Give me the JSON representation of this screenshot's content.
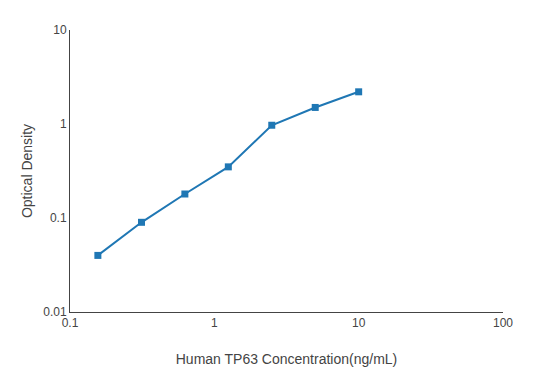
{
  "chart_data": {
    "type": "line",
    "x": [
      0.156,
      0.313,
      0.625,
      1.25,
      2.5,
      5.0,
      10.0
    ],
    "values": [
      0.04,
      0.09,
      0.18,
      0.35,
      0.97,
      1.5,
      2.2
    ],
    "xlabel": "Human TP63 Concentration(ng/mL)",
    "ylabel": "Optical Density",
    "xlim": [
      0.1,
      100
    ],
    "ylim": [
      0.01,
      10
    ],
    "xticks": [
      0.1,
      1,
      10,
      100
    ],
    "yticks": [
      0.01,
      0.1,
      1,
      10
    ],
    "log": true,
    "grid": false,
    "marker": "square"
  }
}
